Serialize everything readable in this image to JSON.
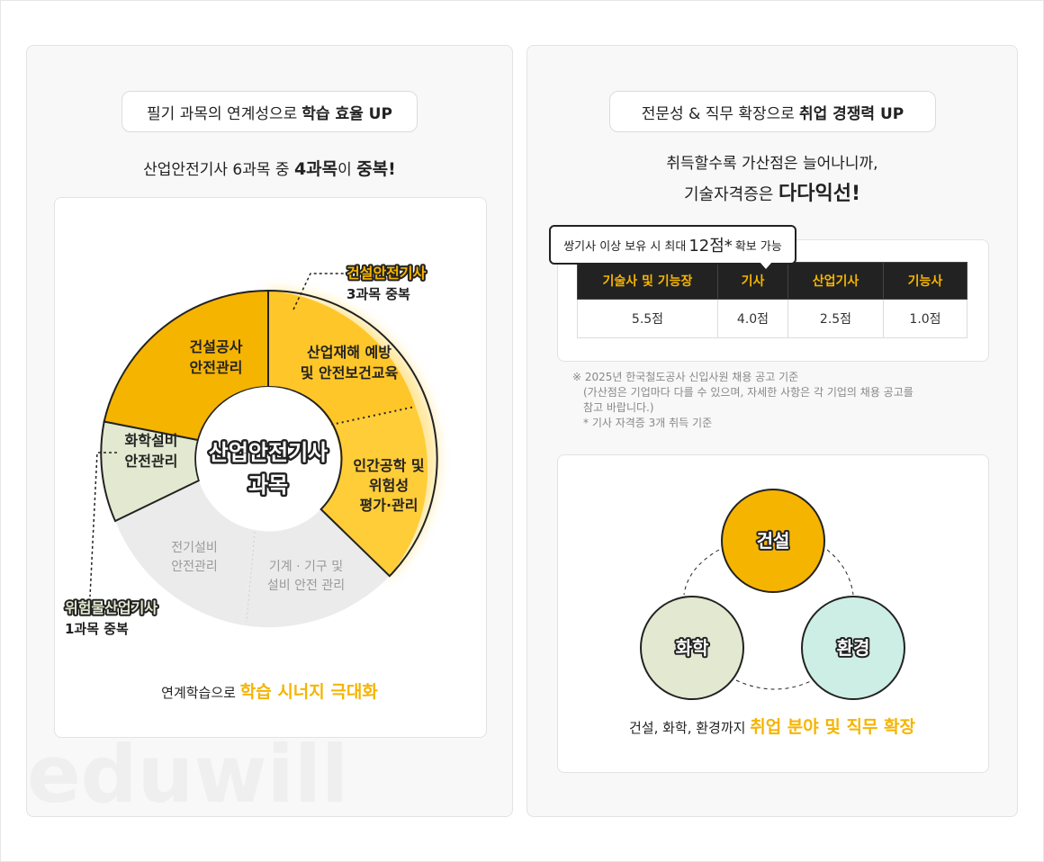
{
  "left": {
    "pill": {
      "prefix": "필기 과목의 연계성으로",
      "bold": "학습 효율 UP"
    },
    "subtitle": {
      "a": "산업안전기사 6과목 중",
      "b": "4과목",
      "c": "이",
      "d": "중복!"
    },
    "center": {
      "line1": "산업안전기사",
      "line2": "과목"
    },
    "segments": [
      {
        "line1": "건설공사",
        "line2": "안전관리",
        "active": true
      },
      {
        "line1": "산업재해 예방",
        "line2": "및 안전보건교육",
        "active": true
      },
      {
        "line1": "인간공학 및",
        "line2": "위험성",
        "line3": "평가·관리",
        "active": true
      },
      {
        "line1": "기계 · 기구 및",
        "line2": "설비 안전 관리",
        "active": false
      },
      {
        "line1": "전기설비",
        "line2": "안전관리",
        "active": false
      },
      {
        "line1": "화학설비",
        "line2": "안전관리",
        "active": true
      }
    ],
    "callout_top": {
      "title": "건설안전기사",
      "sub": "3과목 중복"
    },
    "callout_bottom": {
      "title": "위험물산업기사",
      "sub": "1과목 중복"
    },
    "footer": {
      "prefix": "연계학습으로",
      "highlight": "학습 시너지 극대화"
    },
    "watermark": "eduwill",
    "colors": {
      "accent": "#f5b400",
      "accent_light": "#ffcd38",
      "green": "#e2e9d0",
      "gray": "#ebebeb"
    }
  },
  "right": {
    "pill": {
      "prefix": "전문성 & 직무 확장으로",
      "bold": "취업 경쟁력 UP"
    },
    "subtitle": {
      "line1": "취득할수록 가산점은 늘어나니까,",
      "line2a": "기술자격증은",
      "line2b": "다다익선!"
    },
    "bubble": {
      "a": "쌍기사 이상 보유 시 최대",
      "b": "12점*",
      "c": "확보 가능"
    },
    "table": {
      "headers": [
        "기술사 및 기능장",
        "기사",
        "산업기사",
        "기능사"
      ],
      "values": [
        "5.5점",
        "4.0점",
        "2.5점",
        "1.0점"
      ]
    },
    "notes": [
      "※ 2025년 한국철도공사 신입사원 채용 공고 기준",
      "(가산점은 기업마다 다를 수 있으며, 자세한 사항은 각 기업의 채용 공고를",
      "참고 바랍니다.)",
      "* 기사 자격증 3개 취득 기준"
    ],
    "circles": [
      {
        "label": "건설",
        "color": "#f5b400"
      },
      {
        "label": "화학",
        "color": "#e2e9d0"
      },
      {
        "label": "환경",
        "color": "#cdeee5"
      }
    ],
    "footer": {
      "prefix": "건설, 화학, 환경까지",
      "highlight": "취업 분야 및 직무 확장"
    }
  }
}
